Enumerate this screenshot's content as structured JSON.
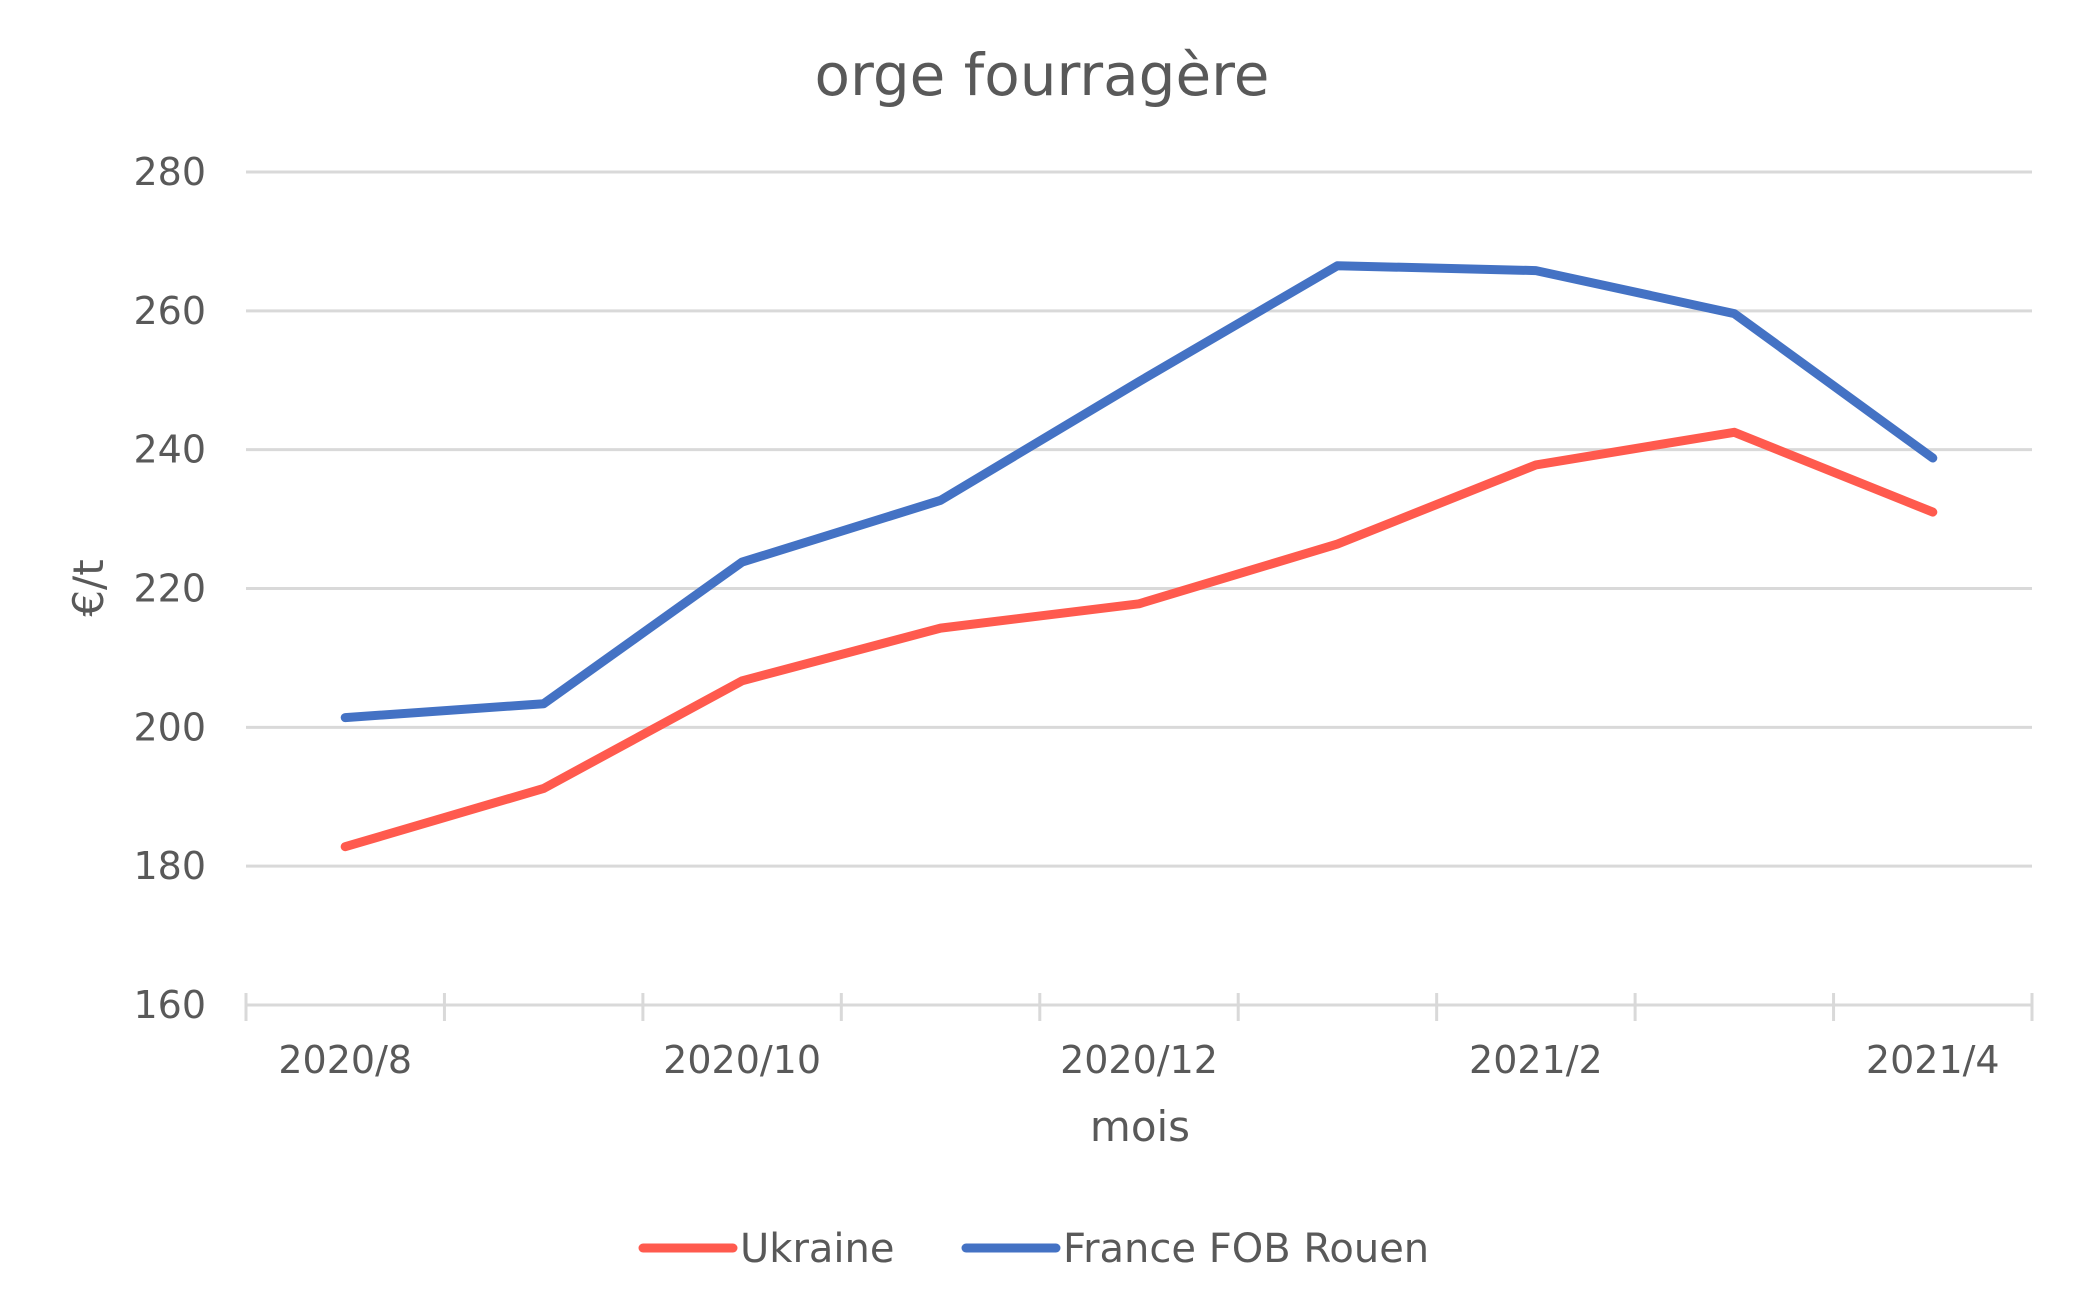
{
  "chart_data": {
    "type": "line",
    "title": "orge fourragère",
    "xlabel": "mois",
    "ylabel": "€/t",
    "x": [
      "2020/8",
      "2020/9",
      "2020/10",
      "2020/11",
      "2020/12",
      "2021/1",
      "2021/2",
      "2021/3",
      "2021/4"
    ],
    "x_tick_labels": [
      "2020/8",
      "2020/10",
      "2020/12",
      "2021/2",
      "2021/4"
    ],
    "ylim": [
      160,
      280
    ],
    "y_ticks": [
      "160",
      "180",
      "200",
      "220",
      "240",
      "260",
      "280"
    ],
    "grid": true,
    "legend_position": "bottom",
    "series": [
      {
        "name": "Ukraine",
        "color": "#ff5a4e",
        "values": [
          182.8,
          191.2,
          206.7,
          214.3,
          217.8,
          226.4,
          237.8,
          242.5,
          231.0
        ]
      },
      {
        "name": "France FOB Rouen",
        "color": "#4472c4",
        "values": [
          201.4,
          203.4,
          223.8,
          232.7,
          249.8,
          266.5,
          265.8,
          259.6,
          238.8
        ]
      }
    ]
  }
}
